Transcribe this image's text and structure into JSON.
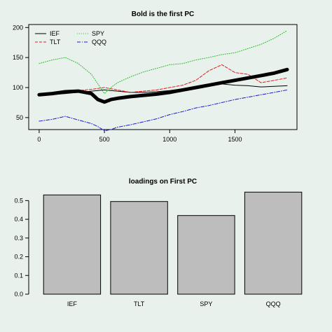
{
  "chart_data": [
    {
      "type": "line",
      "title": "Bold is the first PC",
      "xlabel": "",
      "ylabel": "",
      "xlim": [
        -80,
        1975
      ],
      "ylim": [
        30,
        205
      ],
      "xticks": [
        0,
        500,
        1000,
        1500
      ],
      "yticks": [
        50,
        100,
        150,
        200
      ],
      "legend_placement": "top-left",
      "series": [
        {
          "name": "IEF",
          "color": "#000000",
          "dash": "solid",
          "x": [
            0,
            100,
            200,
            300,
            400,
            500,
            600,
            700,
            800,
            900,
            1000,
            1100,
            1200,
            1300,
            1400,
            1500,
            1600,
            1700,
            1800,
            1900
          ],
          "y": [
            86,
            88,
            90,
            92,
            94,
            96,
            94,
            92,
            92,
            93,
            95,
            98,
            101,
            103,
            106,
            104,
            103,
            101,
            102,
            103
          ]
        },
        {
          "name": "TLT",
          "color": "#e41a1c",
          "dash": "4,2",
          "x": [
            0,
            100,
            200,
            300,
            400,
            500,
            600,
            700,
            800,
            900,
            1000,
            1100,
            1200,
            1300,
            1400,
            1500,
            1600,
            1700,
            1800,
            1900
          ],
          "y": [
            87,
            90,
            92,
            95,
            97,
            100,
            96,
            92,
            94,
            96,
            100,
            104,
            112,
            128,
            138,
            125,
            122,
            108,
            112,
            116
          ]
        },
        {
          "name": "SPY",
          "color": "#22bb22",
          "dash": "1,2",
          "x": [
            0,
            100,
            200,
            300,
            400,
            450,
            500,
            550,
            600,
            700,
            800,
            900,
            1000,
            1100,
            1200,
            1300,
            1400,
            1500,
            1600,
            1700,
            1800,
            1900
          ],
          "y": [
            140,
            146,
            150,
            140,
            122,
            106,
            90,
            100,
            108,
            118,
            126,
            132,
            138,
            140,
            146,
            150,
            155,
            158,
            165,
            172,
            182,
            195
          ]
        },
        {
          "name": "QQQ",
          "color": "#1a1acc",
          "dash": "5,2,1,2",
          "x": [
            0,
            100,
            200,
            300,
            400,
            450,
            500,
            550,
            600,
            700,
            800,
            900,
            1000,
            1100,
            1200,
            1300,
            1400,
            1500,
            1600,
            1700,
            1800,
            1900
          ],
          "y": [
            44,
            47,
            52,
            46,
            40,
            35,
            28,
            30,
            34,
            38,
            43,
            48,
            55,
            60,
            66,
            70,
            75,
            80,
            84,
            88,
            92,
            96
          ]
        },
        {
          "name": "",
          "color": "#000000",
          "dash": "solid",
          "bold": true,
          "x": [
            0,
            100,
            200,
            300,
            400,
            450,
            500,
            550,
            600,
            700,
            800,
            900,
            1000,
            1100,
            1200,
            1300,
            1400,
            1500,
            1600,
            1700,
            1800,
            1900
          ],
          "y": [
            88,
            90,
            93,
            94,
            90,
            80,
            76,
            80,
            82,
            85,
            87,
            89,
            92,
            96,
            100,
            104,
            108,
            112,
            116,
            120,
            124,
            130
          ]
        }
      ]
    },
    {
      "type": "bar",
      "title": "loadings on First PC",
      "xlabel": "",
      "ylabel": "",
      "categories": [
        "IEF",
        "TLT",
        "SPY",
        "QQQ"
      ],
      "values": [
        0.53,
        0.495,
        0.42,
        0.545
      ],
      "ylim": [
        0,
        0.55
      ],
      "yticks": [
        0.0,
        0.1,
        0.2,
        0.3,
        0.4,
        0.5
      ],
      "bar_color": "#bdbdbd"
    }
  ]
}
